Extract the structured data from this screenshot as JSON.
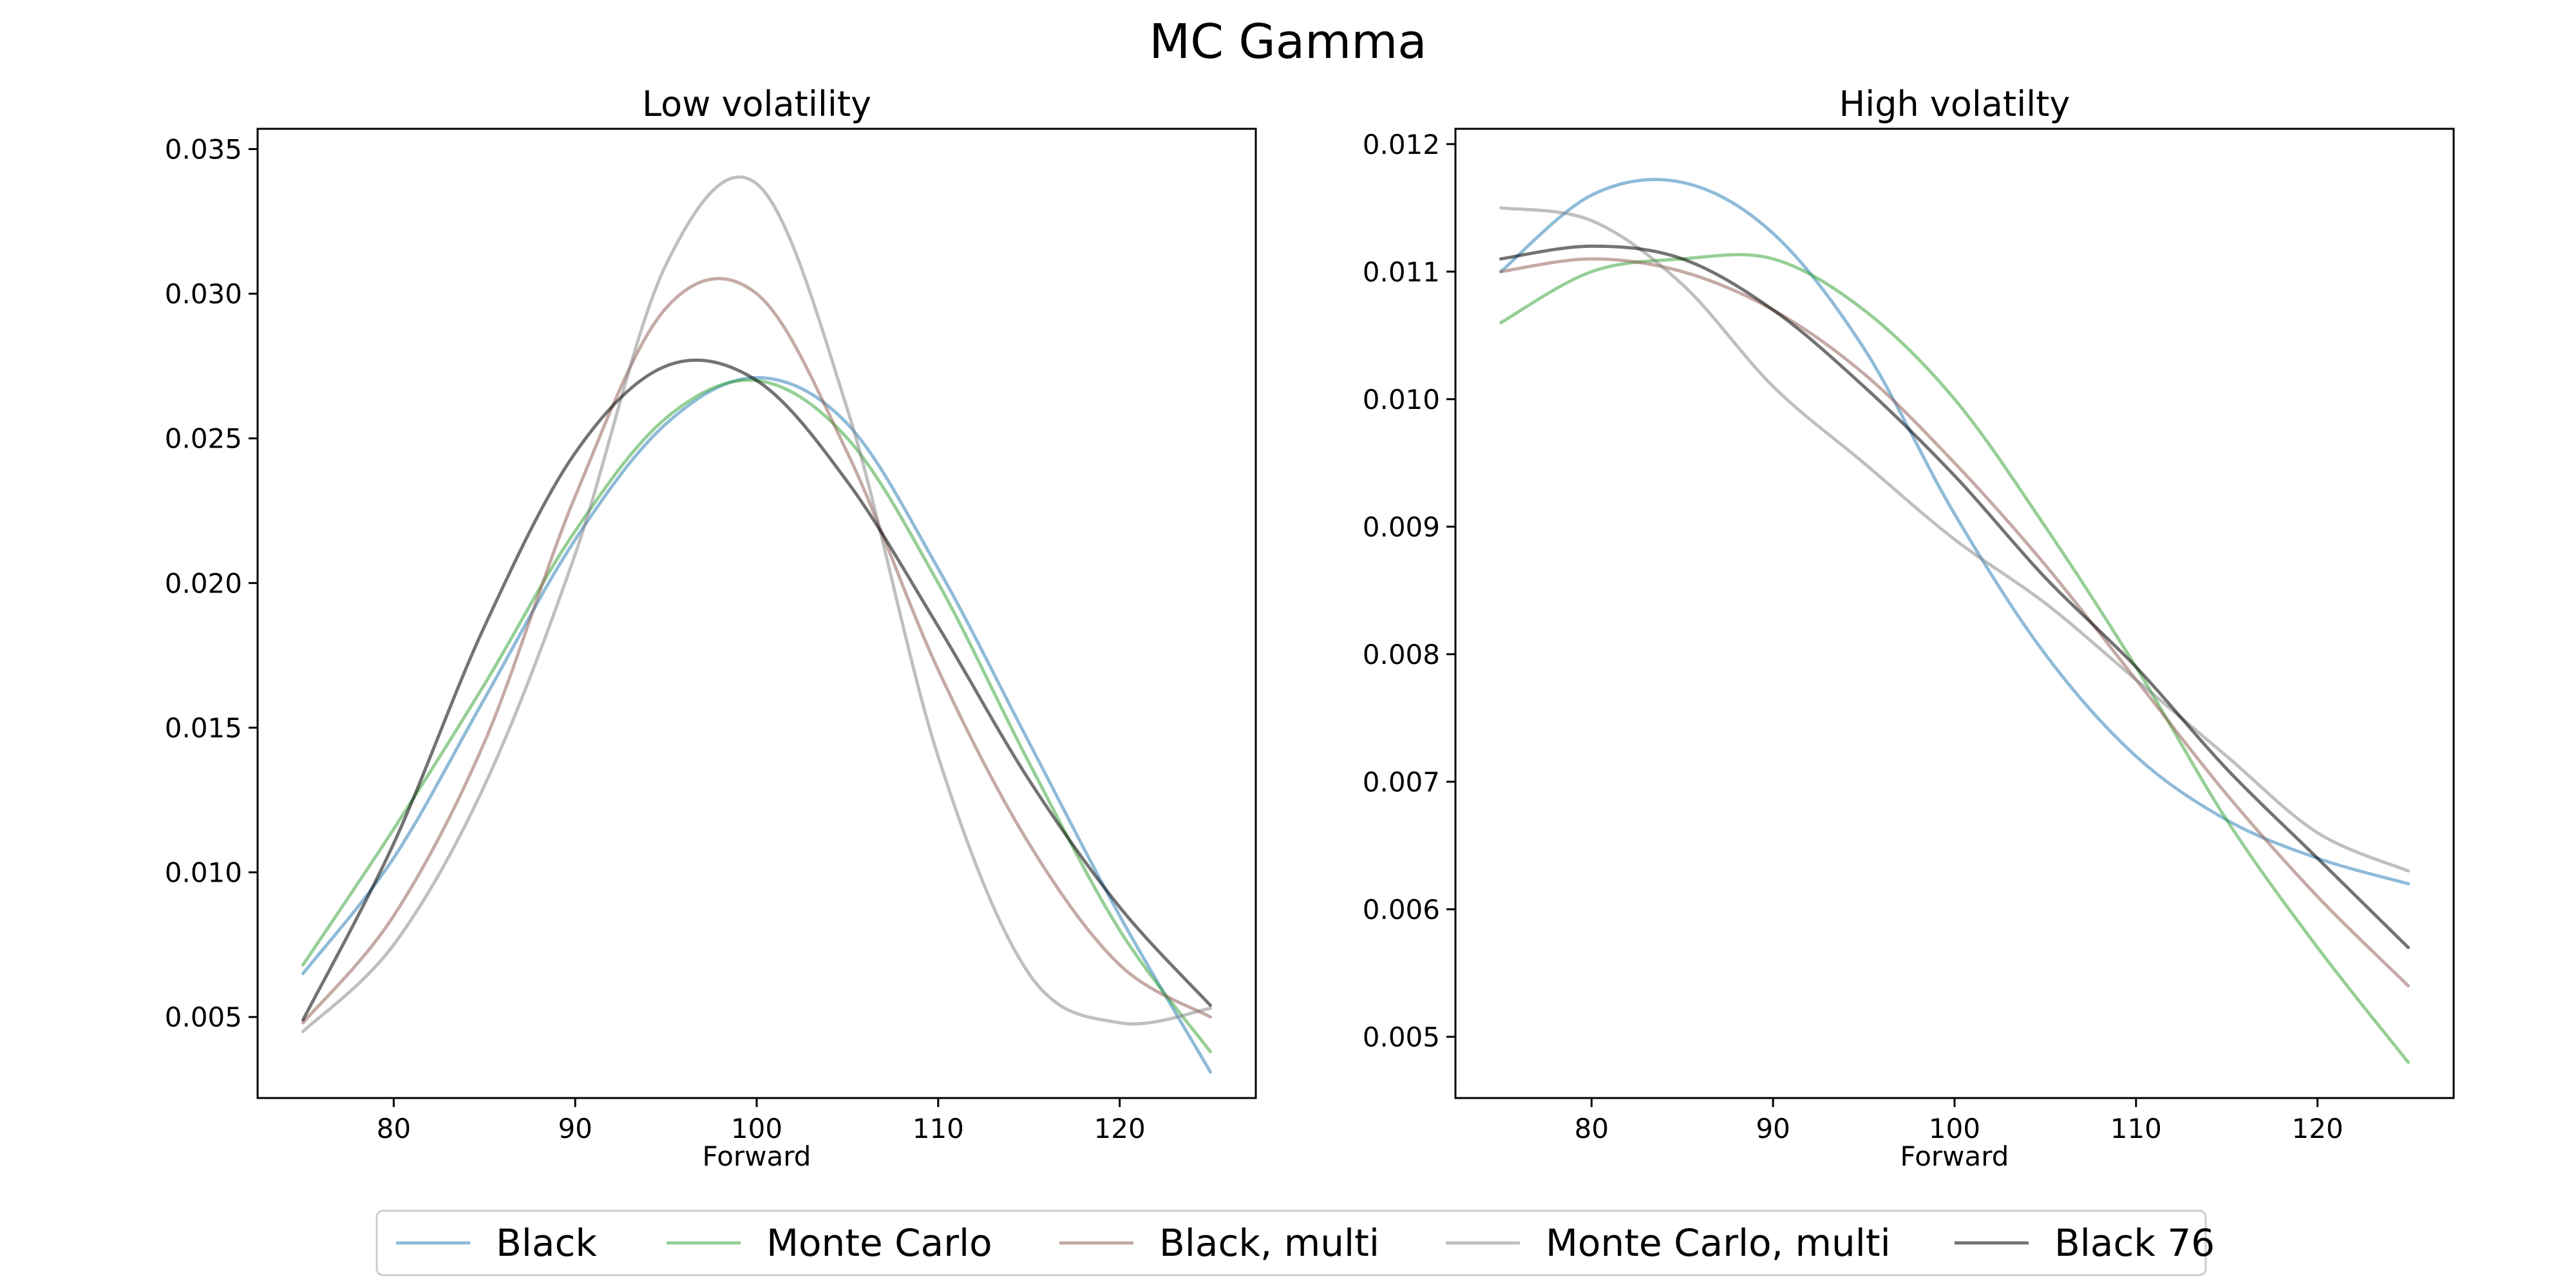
{
  "figure": {
    "title": "MC Gamma"
  },
  "chart_data": [
    {
      "type": "line",
      "title": "Low volatility",
      "xlabel": "Forward",
      "ylabel": "",
      "xlim": [
        72.5,
        127.5
      ],
      "ylim": [
        0.0022,
        0.0357
      ],
      "xticks": [
        80,
        90,
        100,
        110,
        120
      ],
      "yticks": [
        0.005,
        0.01,
        0.015,
        0.02,
        0.025,
        0.03,
        0.035
      ],
      "xtick_labels": [
        "80",
        "90",
        "100",
        "110",
        "120"
      ],
      "ytick_labels": [
        "0.005",
        "0.010",
        "0.015",
        "0.020",
        "0.025",
        "0.030",
        "0.035"
      ],
      "grid": false,
      "x": [
        75,
        80,
        85,
        90,
        95,
        100,
        105,
        110,
        115,
        120,
        125
      ],
      "series": [
        {
          "name": "Black",
          "color": "#1f77b4",
          "values": [
            0.0065,
            0.0105,
            0.016,
            0.0215,
            0.0255,
            0.0271,
            0.0255,
            0.0205,
            0.0145,
            0.0085,
            0.0031
          ]
        },
        {
          "name": "Monte Carlo",
          "color": "#2ca02c",
          "values": [
            0.0068,
            0.0115,
            0.0165,
            0.0218,
            0.0257,
            0.027,
            0.025,
            0.02,
            0.0138,
            0.008,
            0.0038
          ]
        },
        {
          "name": "Black, multi",
          "color": "#8c564b",
          "values": [
            0.0048,
            0.0085,
            0.0145,
            0.023,
            0.0295,
            0.03,
            0.0245,
            0.017,
            0.011,
            0.0068,
            0.005
          ]
        },
        {
          "name": "Monte Carlo, multi",
          "color": "#7f7f7f",
          "values": [
            0.0045,
            0.0075,
            0.013,
            0.021,
            0.031,
            0.0338,
            0.026,
            0.014,
            0.0065,
            0.0048,
            0.0053
          ]
        },
        {
          "name": "Black 76",
          "color": "#000000",
          "values": [
            0.0049,
            0.011,
            0.0185,
            0.0245,
            0.0275,
            0.027,
            0.0235,
            0.0185,
            0.0132,
            0.0088,
            0.0054
          ]
        }
      ]
    },
    {
      "type": "line",
      "title": "High volatilty",
      "xlabel": "Forward",
      "ylabel": "",
      "xlim": [
        72.5,
        127.5
      ],
      "ylim": [
        0.00452,
        0.01212
      ],
      "xticks": [
        80,
        90,
        100,
        110,
        120
      ],
      "yticks": [
        0.005,
        0.006,
        0.007,
        0.008,
        0.009,
        0.01,
        0.011,
        0.012
      ],
      "xtick_labels": [
        "80",
        "90",
        "100",
        "110",
        "120"
      ],
      "ytick_labels": [
        "0.005",
        "0.006",
        "0.007",
        "0.008",
        "0.009",
        "0.010",
        "0.011",
        "0.012"
      ],
      "grid": false,
      "x": [
        75,
        80,
        85,
        90,
        95,
        100,
        105,
        110,
        115,
        120,
        125
      ],
      "series": [
        {
          "name": "Black",
          "color": "#1f77b4",
          "values": [
            0.011,
            0.0116,
            0.0117,
            0.0113,
            0.0104,
            0.0091,
            0.008,
            0.0072,
            0.0067,
            0.0064,
            0.0062
          ]
        },
        {
          "name": "Monte Carlo",
          "color": "#2ca02c",
          "values": [
            0.0106,
            0.011,
            0.0111,
            0.0111,
            0.0107,
            0.01,
            0.009,
            0.0079,
            0.0067,
            0.0057,
            0.0048
          ]
        },
        {
          "name": "Black, multi",
          "color": "#8c564b",
          "values": [
            0.011,
            0.0111,
            0.011,
            0.0107,
            0.0102,
            0.0095,
            0.0087,
            0.0078,
            0.0069,
            0.0061,
            0.0054
          ]
        },
        {
          "name": "Monte Carlo, multi",
          "color": "#7f7f7f",
          "values": [
            0.0115,
            0.0114,
            0.0109,
            0.0101,
            0.0095,
            0.0089,
            0.0084,
            0.0078,
            0.0072,
            0.0066,
            0.0063
          ]
        },
        {
          "name": "Black 76",
          "color": "#000000",
          "values": [
            0.0111,
            0.0112,
            0.0111,
            0.0107,
            0.0101,
            0.0094,
            0.0086,
            0.0079,
            0.0071,
            0.0064,
            0.0057
          ]
        }
      ]
    }
  ],
  "legend": {
    "placement": "bottom-center",
    "entries": [
      "Black",
      "Monte Carlo",
      "Black, multi",
      "Monte Carlo, multi",
      "Black 76"
    ]
  }
}
